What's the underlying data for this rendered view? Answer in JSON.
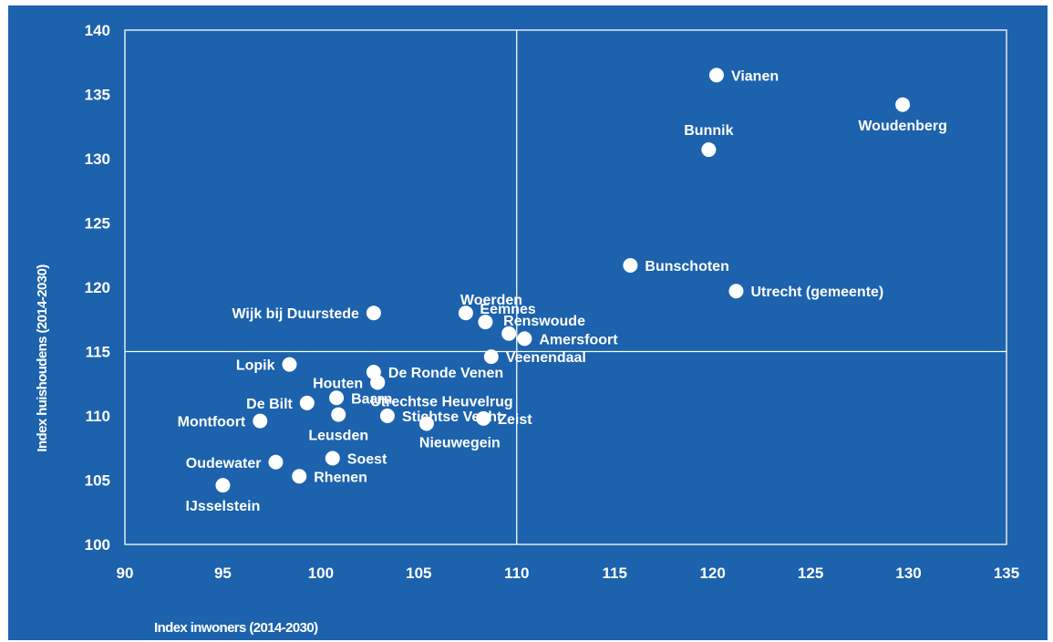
{
  "chart_data": {
    "type": "scatter",
    "xlabel": "Index inwoners (2014-2030)",
    "ylabel": "Index huishoudens (2014-2030)",
    "xlim": [
      90,
      135
    ],
    "ylim": [
      100,
      140
    ],
    "xticks": [
      "90",
      "95",
      "100",
      "105",
      "110",
      "115",
      "120",
      "125",
      "130",
      "135"
    ],
    "yticks": [
      "100",
      "105",
      "110",
      "115",
      "120",
      "125",
      "130",
      "135",
      "140"
    ],
    "reference_lines": {
      "x": 110,
      "y": 115
    },
    "grid": false,
    "colors": {
      "background": "#1c62ad",
      "points": "#ffffff",
      "lines": "#ffffff"
    },
    "points": [
      {
        "label": "Vianen",
        "x": 120.2,
        "y": 136.5,
        "pos": "right"
      },
      {
        "label": "Woudenberg",
        "x": 129.7,
        "y": 134.2,
        "pos": "below"
      },
      {
        "label": "Bunnik",
        "x": 119.8,
        "y": 130.7,
        "pos": "above"
      },
      {
        "label": "Bunschoten",
        "x": 115.8,
        "y": 121.7,
        "pos": "right"
      },
      {
        "label": "Utrecht (gemeente)",
        "x": 121.2,
        "y": 119.7,
        "pos": "right"
      },
      {
        "label": "Wijk bij Duurstede",
        "x": 102.7,
        "y": 118.0,
        "pos": "left"
      },
      {
        "label": "Woerden",
        "x": 107.4,
        "y": 118.0,
        "pos": "aboveright"
      },
      {
        "label": "Eemnes",
        "x": 108.4,
        "y": 117.3,
        "pos": "aboveright"
      },
      {
        "label": "Renswoude",
        "x": 109.6,
        "y": 116.4,
        "pos": "aboveright"
      },
      {
        "label": "Amersfoort",
        "x": 110.4,
        "y": 116.0,
        "pos": "right"
      },
      {
        "label": "Veenendaal",
        "x": 108.7,
        "y": 114.6,
        "pos": "right"
      },
      {
        "label": "Lopik",
        "x": 98.4,
        "y": 114.0,
        "pos": "left"
      },
      {
        "label": "De Ronde Venen",
        "x": 102.7,
        "y": 113.4,
        "pos": "right"
      },
      {
        "label": "Houten",
        "x": 102.9,
        "y": 112.6,
        "pos": "left"
      },
      {
        "label": "Utrechtse Heuvelrug",
        "x": 102.9,
        "y": 112.6,
        "pos": "belowright"
      },
      {
        "label": "Baarn",
        "x": 100.8,
        "y": 111.4,
        "pos": "right"
      },
      {
        "label": "De Bilt",
        "x": 99.3,
        "y": 111.0,
        "pos": "left"
      },
      {
        "label": "Leusden",
        "x": 100.9,
        "y": 110.1,
        "pos": "below"
      },
      {
        "label": "Stichtse Vecht",
        "x": 103.4,
        "y": 110.0,
        "pos": "right"
      },
      {
        "label": "Zeist",
        "x": 108.3,
        "y": 109.8,
        "pos": "right"
      },
      {
        "label": "Montfoort",
        "x": 96.9,
        "y": 109.6,
        "pos": "left"
      },
      {
        "label": "Nieuwegein",
        "x": 105.4,
        "y": 109.4,
        "pos": "belowright"
      },
      {
        "label": "Soest",
        "x": 100.6,
        "y": 106.7,
        "pos": "right"
      },
      {
        "label": "Oudewater",
        "x": 97.7,
        "y": 106.4,
        "pos": "left"
      },
      {
        "label": "Rhenen",
        "x": 98.9,
        "y": 105.3,
        "pos": "right"
      },
      {
        "label": "IJsselstein",
        "x": 95.0,
        "y": 104.6,
        "pos": "below"
      }
    ]
  }
}
